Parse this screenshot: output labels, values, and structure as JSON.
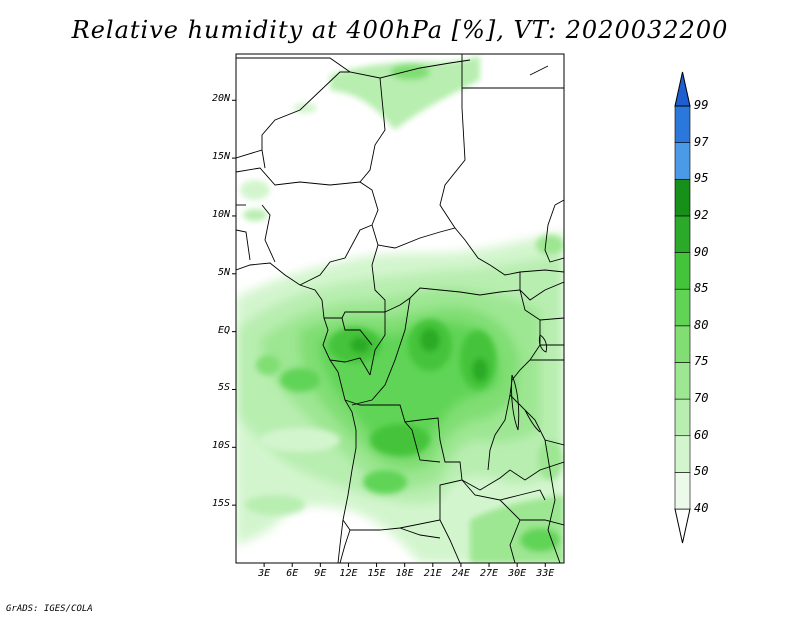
{
  "title": "Relative humidity at 400hPa [%], VT: 2020032200",
  "credit": "GrADS: IGES/COLA",
  "map": {
    "lon_range": [
      0,
      35
    ],
    "lat_range": [
      -20,
      24
    ],
    "lat_ticks": [
      {
        "value": 20,
        "label": "20N"
      },
      {
        "value": 15,
        "label": "15N"
      },
      {
        "value": 10,
        "label": "10N"
      },
      {
        "value": 5,
        "label": "5N"
      },
      {
        "value": 0,
        "label": "EQ"
      },
      {
        "value": -5,
        "label": "5S"
      },
      {
        "value": -10,
        "label": "10S"
      },
      {
        "value": -15,
        "label": "15S"
      }
    ],
    "lon_ticks": [
      {
        "value": 3,
        "label": "3E"
      },
      {
        "value": 6,
        "label": "6E"
      },
      {
        "value": 9,
        "label": "9E"
      },
      {
        "value": 12,
        "label": "12E"
      },
      {
        "value": 15,
        "label": "15E"
      },
      {
        "value": 18,
        "label": "18E"
      },
      {
        "value": 21,
        "label": "21E"
      },
      {
        "value": 24,
        "label": "24E"
      },
      {
        "value": 27,
        "label": "27E"
      },
      {
        "value": 30,
        "label": "30E"
      },
      {
        "value": 33,
        "label": "33E"
      }
    ]
  },
  "colorbar": {
    "levels": [
      {
        "label": "40",
        "color": "#ebfae9"
      },
      {
        "label": "50",
        "color": "#d3f5ce"
      },
      {
        "label": "60",
        "color": "#b8eeb0"
      },
      {
        "label": "70",
        "color": "#9de692"
      },
      {
        "label": "75",
        "color": "#80de73"
      },
      {
        "label": "80",
        "color": "#61d456"
      },
      {
        "label": "85",
        "color": "#44c43a"
      },
      {
        "label": "90",
        "color": "#2aaa28"
      },
      {
        "label": "92",
        "color": "#169018"
      },
      {
        "label": "95",
        "color": "#4a9ae8"
      },
      {
        "label": "97",
        "color": "#2a78dc"
      },
      {
        "label": "99",
        "color": "#1e5ed0"
      }
    ],
    "bottom_color": "#ffffff",
    "top_color": "#1a50b8"
  }
}
